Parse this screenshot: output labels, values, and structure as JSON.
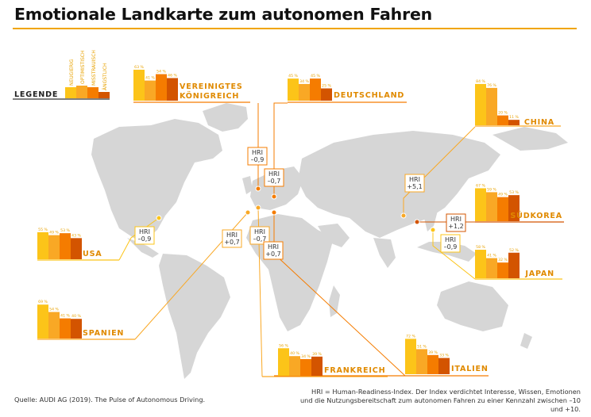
{
  "title": "Emotionale Landkarte zum autonomen Fahren",
  "legend": {
    "label": "LEGENDE",
    "items": [
      {
        "name": "NEUGIERIG",
        "color": "#fcc419"
      },
      {
        "name": "OPTIMISTISCH",
        "color": "#f9a825"
      },
      {
        "name": "MISSTRAUISCH",
        "color": "#f57c00"
      },
      {
        "name": "ÄNGSTLICH",
        "color": "#d35400"
      }
    ]
  },
  "chart_data": {
    "type": "bar",
    "categories": [
      "NEUGIERIG",
      "OPTIMISTISCH",
      "MISSTRAUISCH",
      "ÄNGSTLICH"
    ],
    "unit": "%",
    "series": [
      {
        "name": "VEREINIGTES KÖNIGREICH",
        "values": [
          63,
          41,
          54,
          46
        ],
        "hri": "HRI\n–0,9"
      },
      {
        "name": "DEUTSCHLAND",
        "values": [
          45,
          34,
          45,
          25
        ],
        "hri": "HRI\n–0,7"
      },
      {
        "name": "CHINA",
        "values": [
          84,
          76,
          20,
          11
        ],
        "hri": "HRI\n+5,1"
      },
      {
        "name": "SÜDKOREA",
        "values": [
          67,
          59,
          49,
          53
        ],
        "hri": "HRI\n+1,2"
      },
      {
        "name": "JAPAN",
        "values": [
          58,
          41,
          32,
          52
        ],
        "hri": "HRI\n–0,9"
      },
      {
        "name": "USA",
        "values": [
          55,
          49,
          53,
          43
        ],
        "hri": "HRI\n–0,9"
      },
      {
        "name": "SPANIEN",
        "values": [
          69,
          54,
          41,
          40
        ],
        "hri": "HRI\n+0,7"
      },
      {
        "name": "FRANKREICH",
        "values": [
          56,
          40,
          34,
          39
        ],
        "hri": "HRI\n–0,7"
      },
      {
        "name": "ITALIEN",
        "values": [
          72,
          51,
          39,
          33
        ],
        "hri": "HRI\n+0,7"
      }
    ]
  },
  "source": "Quelle: AUDI AG (2019). The Pulse of Autonomous Driving.",
  "footnote": "HRI = Human-Readiness-Index. Der Index verdichtet Interesse, Wissen, Emotionen und die Nutzungsbereitschaft zum autonomen Fahren zu einer Kennzahl zwischen –10 und +10."
}
